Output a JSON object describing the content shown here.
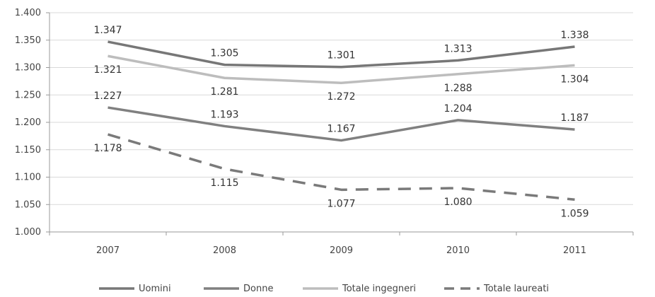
{
  "chart_data": {
    "type": "line",
    "title": "",
    "xlabel": "",
    "ylabel": "",
    "categories": [
      "2007",
      "2008",
      "2009",
      "2010",
      "2011"
    ],
    "ylim": [
      1000,
      1400
    ],
    "yticks": [
      1000,
      1050,
      1100,
      1150,
      1200,
      1250,
      1300,
      1350,
      1400
    ],
    "ytick_labels": [
      "1.000",
      "1.050",
      "1.100",
      "1.150",
      "1.200",
      "1.250",
      "1.300",
      "1.350",
      "1.400"
    ],
    "grid": true,
    "legend_position": "bottom",
    "series": [
      {
        "name": "Uomini",
        "values": [
          1347,
          1305,
          1301,
          1313,
          1338
        ],
        "labels": [
          "1.347",
          "1.305",
          "1.301",
          "1.313",
          "1.338"
        ],
        "color": "#777777",
        "dash": false,
        "label_pos": [
          "above",
          "above",
          "above",
          "above",
          "above"
        ]
      },
      {
        "name": "Donne",
        "values": [
          1227,
          1193,
          1167,
          1204,
          1187
        ],
        "labels": [
          "1.227",
          "1.193",
          "1.167",
          "1.204",
          "1.187"
        ],
        "color": "#808080",
        "dash": false,
        "label_pos": [
          "above",
          "above",
          "above",
          "above",
          "above"
        ]
      },
      {
        "name": "Totale ingegneri",
        "values": [
          1321,
          1281,
          1272,
          1288,
          1304
        ],
        "labels": [
          "1.321",
          "1.281",
          "1.272",
          "1.288",
          "1.304"
        ],
        "color": "#bdbdbd",
        "dash": false,
        "label_pos": [
          "below",
          "below",
          "below",
          "below",
          "below"
        ]
      },
      {
        "name": "Totale laureati",
        "values": [
          1178,
          1115,
          1077,
          1080,
          1059
        ],
        "labels": [
          "1.178",
          "1.115",
          "1.077",
          "1.080",
          "1.059"
        ],
        "color": "#7a7a7a",
        "dash": true,
        "label_pos": [
          "below",
          "below",
          "below",
          "below",
          "below"
        ]
      }
    ]
  }
}
